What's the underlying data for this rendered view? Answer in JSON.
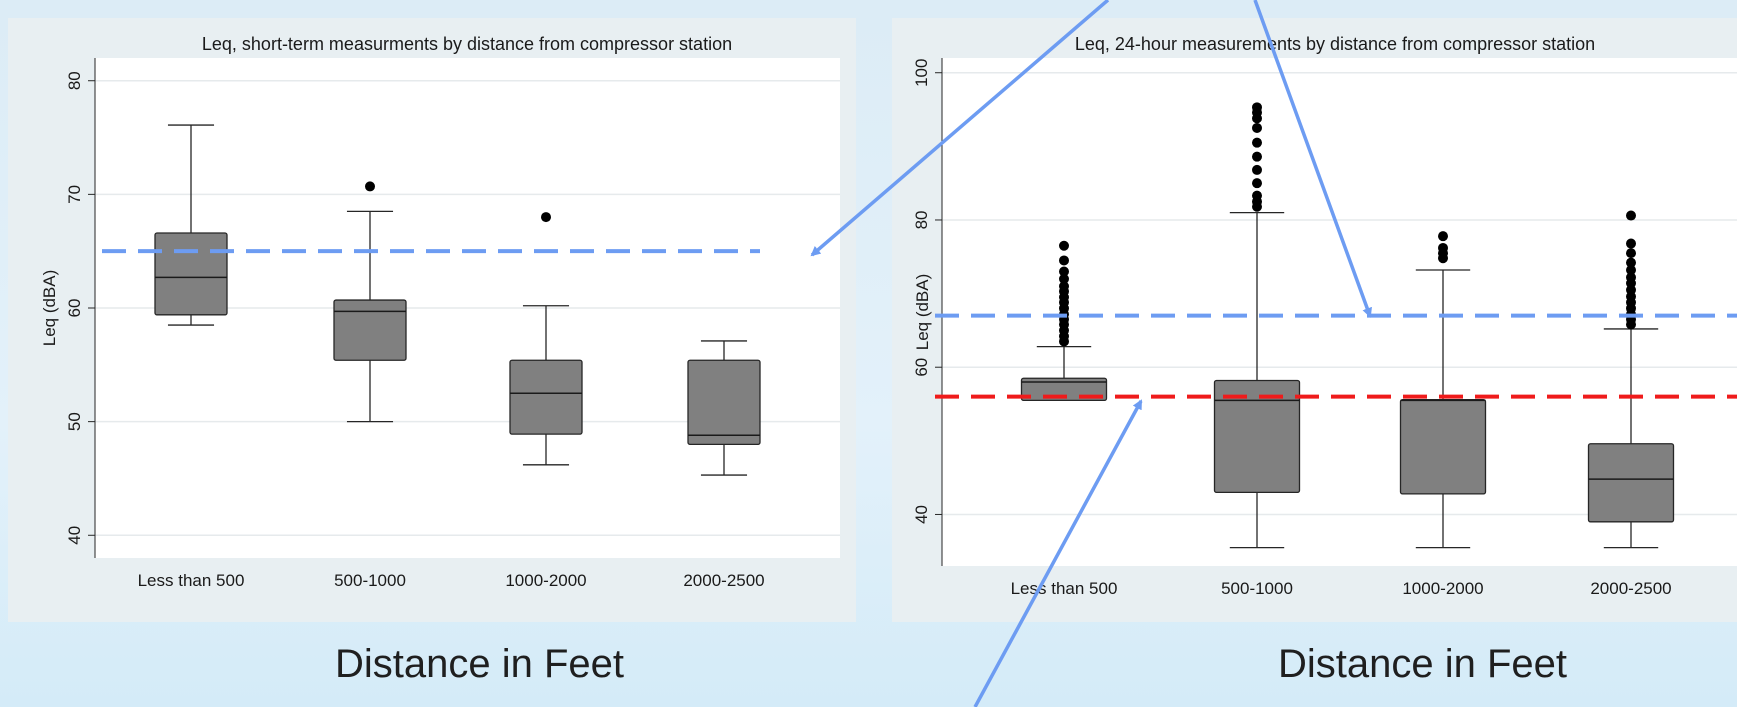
{
  "colors": {
    "panel_bg": "#e8eff2",
    "plot_bg": "#ffffff",
    "box_fill": "#808080",
    "box_stroke": "#262626",
    "grid": "#e6eaec",
    "blue_dashed": "#6d9cf2",
    "red_dashed": "#ef1b1b",
    "arrow": "#6d9cf2"
  },
  "captions": {
    "left": "Distance in Feet",
    "right": "Distance in Feet"
  },
  "chart_data": [
    {
      "type": "box",
      "title": "Leq, short-term measurments by distance from compressor station",
      "xlabel": "",
      "ylabel": "Leq (dBA)",
      "ylim": [
        38,
        82
      ],
      "yticks": [
        40,
        50,
        60,
        70,
        80
      ],
      "categories": [
        "Less than 500",
        "500-1000",
        "1000-2000",
        "2000-2500"
      ],
      "grid": true,
      "boxes": [
        {
          "whisker_low": 58.5,
          "q1": 59.4,
          "median": 62.7,
          "q3": 66.6,
          "whisker_high": 76.1,
          "outliers": []
        },
        {
          "whisker_low": 50.0,
          "q1": 55.4,
          "median": 59.7,
          "q3": 60.7,
          "whisker_high": 68.5,
          "outliers": [
            70.7
          ]
        },
        {
          "whisker_low": 46.2,
          "q1": 48.9,
          "median": 52.5,
          "q3": 55.4,
          "whisker_high": 60.2,
          "outliers": [
            68.0
          ]
        },
        {
          "whisker_low": 45.3,
          "q1": 48.0,
          "median": 48.8,
          "q3": 55.4,
          "whisker_high": 57.1,
          "outliers": []
        }
      ],
      "reference_lines": [
        {
          "y": 65,
          "color": "blue"
        }
      ]
    },
    {
      "type": "box",
      "title": "Leq, 24-hour measurements by distance from compressor station",
      "xlabel": "",
      "ylabel": "Leq (dBA)",
      "ylim": [
        33,
        102
      ],
      "yticks": [
        40,
        60,
        80,
        100
      ],
      "categories": [
        "Less than 500",
        "500-1000",
        "1000-2000",
        "2000-2500"
      ],
      "grid": true,
      "boxes": [
        {
          "whisker_low": 55.5,
          "q1": 55.5,
          "median": 58.0,
          "q3": 58.5,
          "whisker_high": 62.8,
          "outliers": [
            63.5,
            64.2,
            65.0,
            65.8,
            66.5,
            67.2,
            68.0,
            68.8,
            69.5,
            70.3,
            71.0,
            72.0,
            73.0,
            74.5,
            76.5
          ]
        },
        {
          "whisker_low": 35.5,
          "q1": 43.0,
          "median": 55.5,
          "q3": 58.2,
          "whisker_high": 81.0,
          "outliers": [
            81.8,
            82.5,
            83.3,
            85.0,
            86.8,
            88.6,
            90.5,
            92.5,
            93.8,
            94.6,
            95.3
          ]
        },
        {
          "whisker_low": 35.5,
          "q1": 42.8,
          "median": 55.5,
          "q3": 55.6,
          "whisker_high": 73.2,
          "outliers": [
            74.8,
            75.5,
            76.2,
            77.8
          ]
        },
        {
          "whisker_low": 35.5,
          "q1": 39.0,
          "median": 44.8,
          "q3": 49.6,
          "whisker_high": 65.2,
          "outliers": [
            65.8,
            66.5,
            67.2,
            68.0,
            68.8,
            69.6,
            70.5,
            71.4,
            72.2,
            73.2,
            74.2,
            75.5,
            76.8,
            80.6
          ]
        }
      ],
      "reference_lines": [
        {
          "y": 67,
          "color": "blue"
        },
        {
          "y": 56,
          "color": "red"
        }
      ]
    }
  ]
}
